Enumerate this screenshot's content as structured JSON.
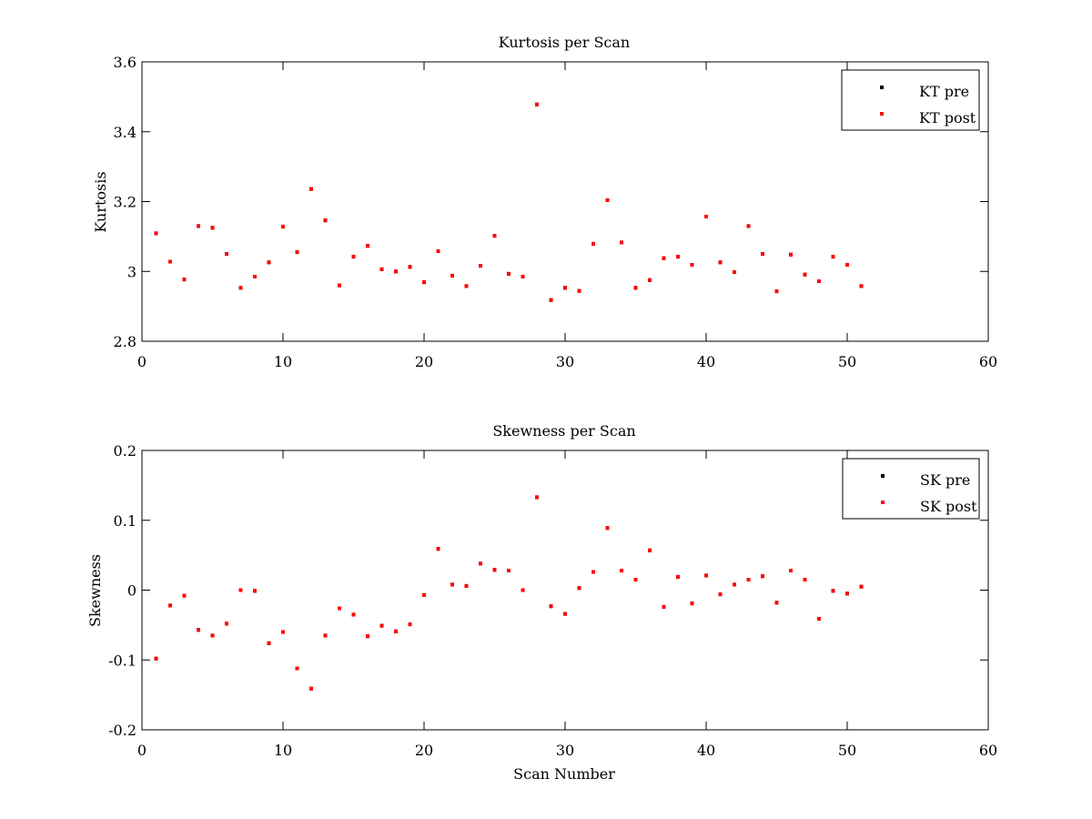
{
  "colors": {
    "pre": "#000000",
    "post": "#ff0000",
    "axes": "#000000",
    "background": "#ffffff"
  },
  "chart_data": [
    {
      "type": "scatter",
      "title": "Kurtosis per Scan",
      "xlabel": "",
      "ylabel": "Kurtosis",
      "xlim": [
        0,
        60
      ],
      "ylim": [
        2.8,
        3.6
      ],
      "x_ticks": [
        "0",
        "10",
        "20",
        "30",
        "40",
        "50",
        "60"
      ],
      "y_ticks": [
        "2.8",
        "3",
        "3.2",
        "3.4",
        "3.6"
      ],
      "legend": {
        "placement": "top-right",
        "entries": [
          "KT pre",
          "KT post"
        ]
      },
      "x": [
        1,
        2,
        3,
        4,
        5,
        6,
        7,
        8,
        9,
        10,
        11,
        12,
        13,
        14,
        15,
        16,
        17,
        18,
        19,
        20,
        21,
        22,
        23,
        24,
        25,
        26,
        27,
        28,
        29,
        30,
        31,
        32,
        33,
        34,
        35,
        36,
        37,
        38,
        39,
        40,
        41,
        42,
        43,
        44,
        45,
        46,
        47,
        48,
        49,
        50,
        51
      ],
      "series": [
        {
          "name": "KT pre",
          "color": "#000000",
          "values": [
            3.109,
            3.028,
            2.977,
            3.13,
            3.125,
            3.05,
            2.953,
            2.985,
            3.026,
            3.128,
            3.055,
            3.236,
            3.146,
            2.96,
            3.042,
            3.073,
            3.006,
            3.0,
            3.013,
            2.969,
            3.058,
            2.988,
            2.958,
            3.016,
            3.102,
            2.993,
            2.985,
            3.478,
            2.918,
            2.953,
            2.944,
            3.079,
            3.204,
            3.083,
            2.953,
            2.975,
            3.038,
            3.042,
            3.019,
            3.157,
            3.026,
            2.998,
            3.13,
            3.05,
            2.943,
            3.048,
            2.991,
            2.972,
            3.042,
            3.019,
            2.958
          ]
        },
        {
          "name": "KT post",
          "color": "#ff0000",
          "values": [
            3.109,
            3.028,
            2.977,
            3.13,
            3.125,
            3.05,
            2.953,
            2.985,
            3.026,
            3.128,
            3.055,
            3.236,
            3.146,
            2.96,
            3.042,
            3.073,
            3.006,
            3.0,
            3.013,
            2.969,
            3.058,
            2.988,
            2.958,
            3.016,
            3.102,
            2.993,
            2.985,
            3.478,
            2.918,
            2.953,
            2.944,
            3.079,
            3.204,
            3.083,
            2.953,
            2.975,
            3.038,
            3.042,
            3.019,
            3.157,
            3.026,
            2.998,
            3.13,
            3.05,
            2.943,
            3.048,
            2.991,
            2.972,
            3.042,
            3.019,
            2.958
          ]
        }
      ]
    },
    {
      "type": "scatter",
      "title": "Skewness per Scan",
      "xlabel": "Scan Number",
      "ylabel": "Skewness",
      "xlim": [
        0,
        60
      ],
      "ylim": [
        -0.2,
        0.2
      ],
      "x_ticks": [
        "0",
        "10",
        "20",
        "30",
        "40",
        "50",
        "60"
      ],
      "y_ticks": [
        "-0.2",
        "-0.1",
        "0",
        "0.1",
        "0.2"
      ],
      "legend": {
        "placement": "top-right",
        "entries": [
          "SK pre",
          "SK post"
        ]
      },
      "x": [
        1,
        2,
        3,
        4,
        5,
        6,
        7,
        8,
        9,
        10,
        11,
        12,
        13,
        14,
        15,
        16,
        17,
        18,
        19,
        20,
        21,
        22,
        23,
        24,
        25,
        26,
        27,
        28,
        29,
        30,
        31,
        32,
        33,
        34,
        35,
        36,
        37,
        38,
        39,
        40,
        41,
        42,
        43,
        44,
        45,
        46,
        47,
        48,
        49,
        50,
        51
      ],
      "series": [
        {
          "name": "SK pre",
          "color": "#000000",
          "values": [
            -0.098,
            -0.022,
            -0.008,
            -0.057,
            -0.065,
            -0.048,
            0.0,
            -0.001,
            -0.076,
            -0.06,
            -0.112,
            -0.141,
            -0.065,
            -0.026,
            -0.035,
            -0.066,
            -0.051,
            -0.059,
            -0.049,
            -0.007,
            0.059,
            0.008,
            0.006,
            0.038,
            0.029,
            0.028,
            0.0,
            0.133,
            -0.023,
            -0.034,
            0.003,
            0.026,
            0.089,
            0.028,
            0.015,
            0.057,
            -0.024,
            0.019,
            -0.019,
            0.021,
            -0.006,
            0.008,
            0.015,
            0.02,
            -0.018,
            0.028,
            0.015,
            -0.041,
            -0.001,
            -0.005,
            0.005
          ]
        },
        {
          "name": "SK post",
          "color": "#ff0000",
          "values": [
            -0.098,
            -0.022,
            -0.008,
            -0.057,
            -0.065,
            -0.048,
            0.0,
            -0.001,
            -0.076,
            -0.06,
            -0.112,
            -0.141,
            -0.065,
            -0.026,
            -0.035,
            -0.066,
            -0.051,
            -0.059,
            -0.049,
            -0.007,
            0.059,
            0.008,
            0.006,
            0.038,
            0.029,
            0.028,
            0.0,
            0.133,
            -0.023,
            -0.034,
            0.003,
            0.026,
            0.089,
            0.028,
            0.015,
            0.057,
            -0.024,
            0.019,
            -0.019,
            0.021,
            -0.006,
            0.008,
            0.015,
            0.02,
            -0.018,
            0.028,
            0.015,
            -0.041,
            -0.001,
            -0.005,
            0.005
          ]
        }
      ]
    }
  ]
}
